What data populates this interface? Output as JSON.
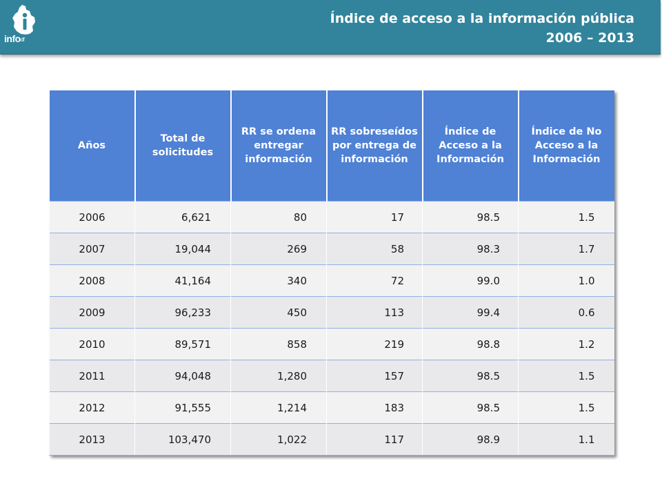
{
  "header": {
    "logo_text": "info",
    "logo_suffix": "df",
    "title_line1": "Índice de acceso a la información pública",
    "title_line2": "2006 – 2013",
    "background_color": "#31849b"
  },
  "table": {
    "header_color": "#4f81d5",
    "columns": [
      "Años",
      "Total de solicitudes",
      "RR se ordena entregar información",
      "RR sobreseídos por entrega de información",
      "Índice de Acceso a la Información",
      "Índice de No Acceso a la Información"
    ],
    "rows": [
      [
        "2006",
        "6,621",
        "80",
        "17",
        "98.5",
        "1.5"
      ],
      [
        "2007",
        "19,044",
        "269",
        "58",
        "98.3",
        "1.7"
      ],
      [
        "2008",
        "41,164",
        "340",
        "72",
        "99.0",
        "1.0"
      ],
      [
        "2009",
        "96,233",
        "450",
        "113",
        "99.4",
        "0.6"
      ],
      [
        "2010",
        "89,571",
        "858",
        "219",
        "98.8",
        "1.2"
      ],
      [
        "2011",
        "94,048",
        "1,280",
        "157",
        "98.5",
        "1.5"
      ],
      [
        "2012",
        "91,555",
        "1,214",
        "183",
        "98.5",
        "1.5"
      ],
      [
        "2013",
        "103,470",
        "1,022",
        "117",
        "98.9",
        "1.1"
      ]
    ]
  }
}
